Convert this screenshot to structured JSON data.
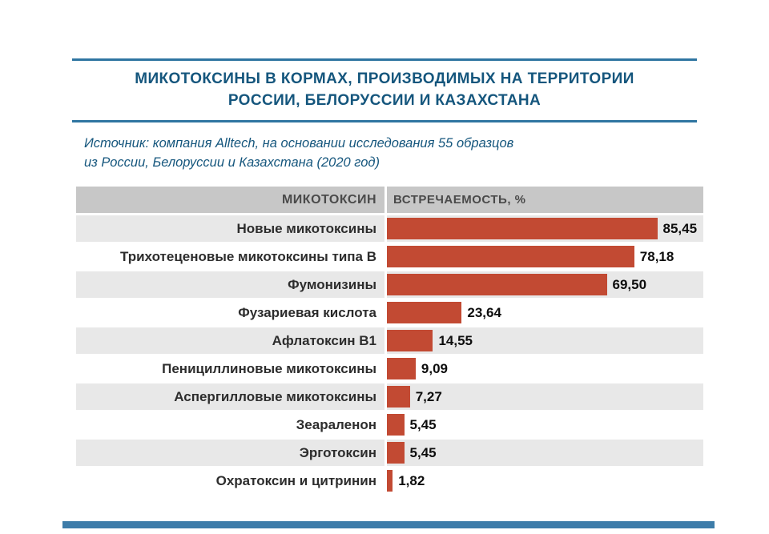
{
  "page": {
    "title_line1": "МИКОТОКСИНЫ В КОРМАХ, ПРОИЗВОДИМЫХ НА ТЕРРИТОРИИ",
    "title_line2": "РОССИИ, БЕЛОРУССИИ И КАЗАХСТАНА",
    "source_line1": "Источник: компания Alltech, на основании исследования 55 образцов",
    "source_line2": "из России, Белоруссии и Казахстана (2020 год)"
  },
  "colors": {
    "title_blue": "#15567d",
    "rule_blue": "#2f75a1",
    "bar_red": "#c24a33",
    "header_gray": "#c7c7c7",
    "stripe_gray": "#e8e8e8",
    "bottom_strip_blue": "#3d7ca9"
  },
  "chart_data": {
    "type": "bar",
    "orientation": "horizontal",
    "title": "МИКОТОКСИНЫ В КОРМАХ, ПРОИЗВОДИМЫХ НА ТЕРРИТОРИИ РОССИИ, БЕЛОРУССИИ И КАЗАХСТАНА",
    "source": "Источник: компания Alltech, на основании исследования 55 образцов из России, Белоруссии и Казахстана (2020 год)",
    "columns": [
      "МИКОТОКСИН",
      "ВСТРЕЧАЕМОСТЬ, %"
    ],
    "categories": [
      "Новые микотоксины",
      "Трихотеценовые микотоксины типа В",
      "Фумонизины",
      "Фузариевая кислота",
      "Афлатоксин В1",
      "Пенициллиновые микотоксины",
      "Аспергилловые микотоксины",
      "Зеараленон",
      "Эрготоксин",
      "Охратоксин и цитринин"
    ],
    "values": [
      85.45,
      78.18,
      69.5,
      23.64,
      14.55,
      9.09,
      7.27,
      5.45,
      5.45,
      1.82
    ],
    "value_labels": [
      "85,45",
      "78,18",
      "69,50",
      "23,64",
      "14,55",
      "9,09",
      "7,27",
      "5,45",
      "5,45",
      "1,82"
    ],
    "xlabel": "ВСТРЕЧАЕМОСТЬ, %",
    "ylabel": "МИКОТОКСИН",
    "xlim": [
      0,
      100
    ],
    "grid": false,
    "legend": false
  }
}
